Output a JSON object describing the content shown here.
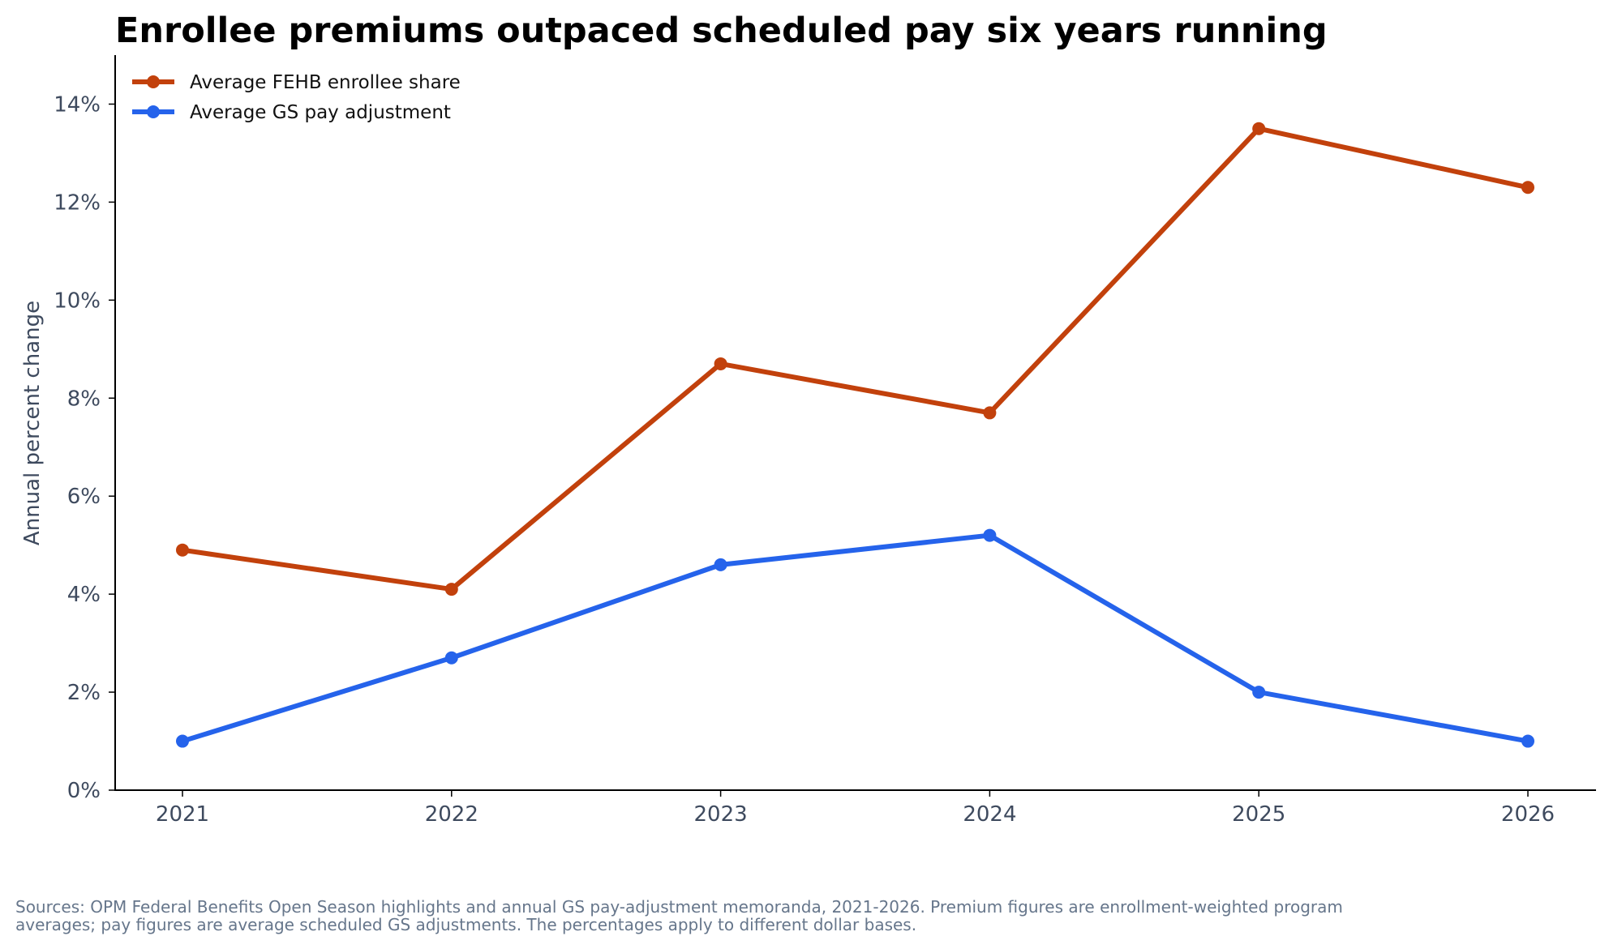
{
  "chart_data": {
    "type": "line",
    "title": "Enrollee premiums outpaced scheduled pay six years running",
    "xlabel": "",
    "ylabel": "Annual percent change",
    "x": [
      2021,
      2022,
      2023,
      2024,
      2025,
      2026
    ],
    "x_tick_labels": [
      "2021",
      "2022",
      "2023",
      "2024",
      "2025",
      "2026"
    ],
    "ylim": [
      0,
      15
    ],
    "y_ticks": [
      0,
      2,
      4,
      6,
      8,
      10,
      12,
      14
    ],
    "y_tick_labels": [
      "0%",
      "2%",
      "4%",
      "6%",
      "8%",
      "10%",
      "12%",
      "14%"
    ],
    "grid": false,
    "legend_position": "top-left",
    "series": [
      {
        "name": "Average FEHB enrollee share",
        "color": "#c2410c",
        "values": [
          4.9,
          4.1,
          8.7,
          7.7,
          13.5,
          12.3
        ]
      },
      {
        "name": "Average GS pay adjustment",
        "color": "#2563eb",
        "values": [
          1.0,
          2.7,
          4.6,
          5.2,
          2.0,
          1.0
        ]
      }
    ],
    "footnote_lines": [
      "Sources: OPM Federal Benefits Open Season highlights and annual GS pay-adjustment memoranda, 2021-2026. Premium figures are enrollment-weighted program",
      "averages; pay figures are average scheduled GS adjustments. The percentages apply to different dollar bases."
    ]
  }
}
